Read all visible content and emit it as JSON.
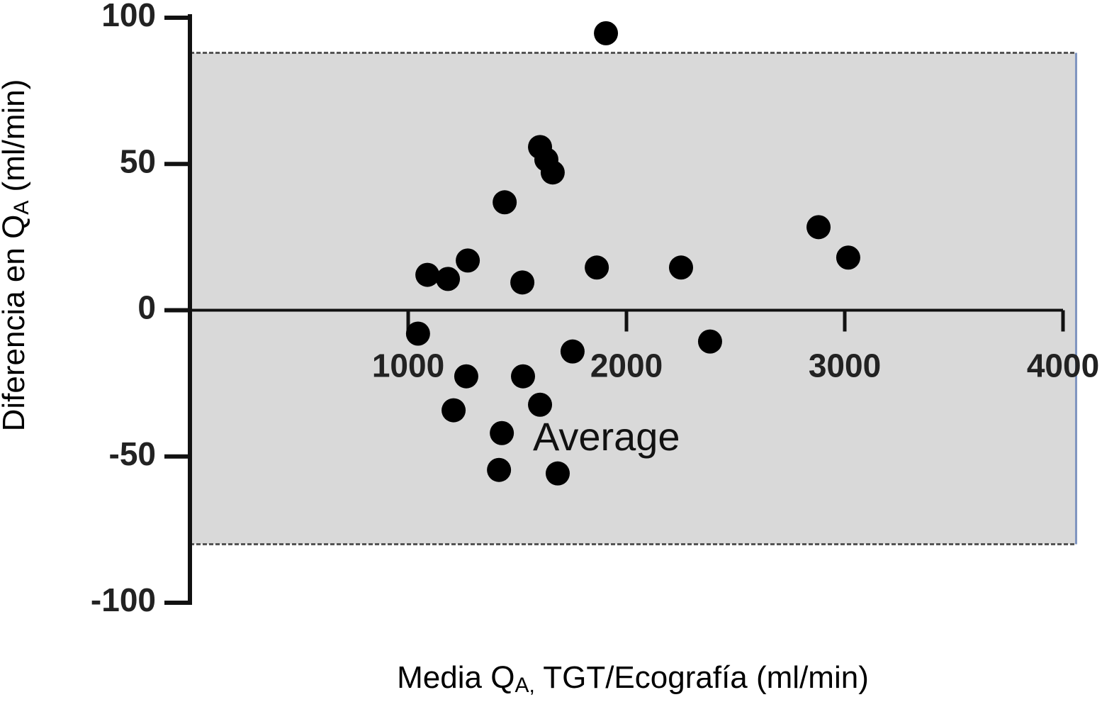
{
  "chart_data": {
    "type": "scatter",
    "y_label": [
      "Diferencia en Q",
      "A",
      " (ml/min)"
    ],
    "x_label": [
      "Media Q",
      "A,",
      " TGT/Ecografía (ml/min)"
    ],
    "annotation": "Average",
    "color": "#000000",
    "band": {
      "upper": 88,
      "lower": -80,
      "color": "#d9d9d9"
    },
    "xlim": [
      0,
      4060
    ],
    "xticks": [
      1000,
      2000,
      3000,
      4000
    ],
    "ylim": [
      -100,
      100
    ],
    "yticks": [
      -100,
      -50,
      0,
      50,
      100
    ],
    "x": [
      1906,
      1604,
      1633,
      1662,
      1442,
      2880,
      3016,
      1273,
      1088,
      1182,
      1864,
      2250,
      1523,
      1045,
      2383,
      1753,
      1266,
      1526,
      1604,
      1208,
      1429,
      1416,
      1685
    ],
    "values": [
      94.7,
      55.8,
      51.5,
      47.1,
      36.9,
      28.4,
      18.0,
      17.0,
      12.1,
      10.7,
      14.6,
      14.6,
      9.5,
      -8.0,
      -10.7,
      -14.1,
      -22.6,
      -22.6,
      -32.3,
      -34.2,
      -42.0,
      -54.6,
      -55.8
    ]
  }
}
